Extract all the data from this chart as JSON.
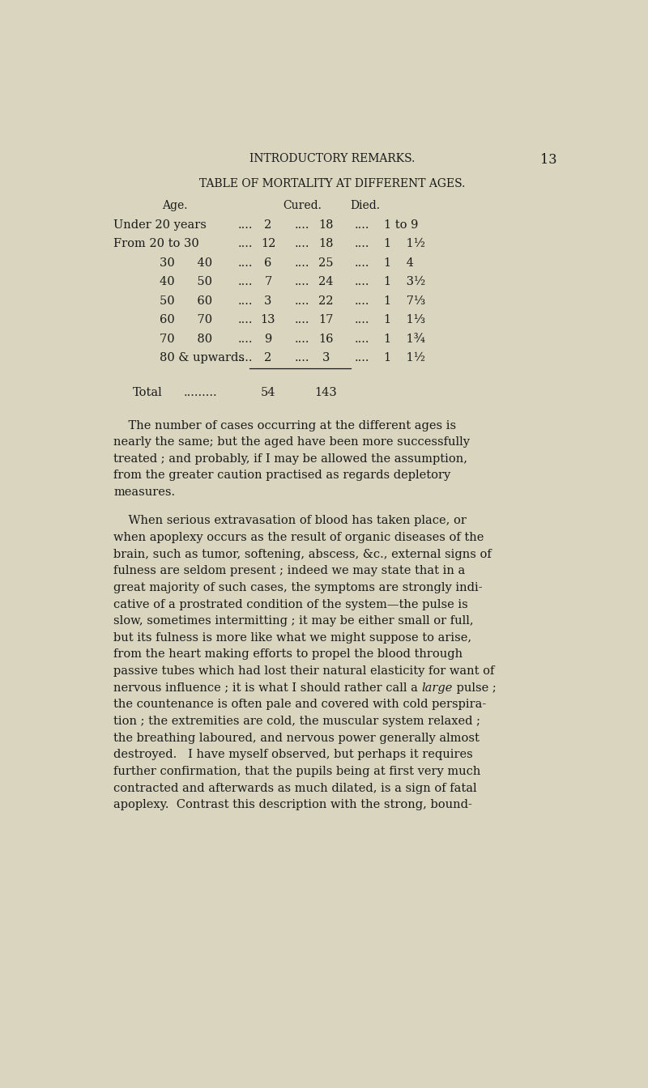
{
  "bg_color": "#d9d5be",
  "text_color": "#1a1a1a",
  "page_width": 8.0,
  "page_height": 13.44,
  "header_text": "INTRODUCTORY REMARKS.",
  "page_number": "13",
  "table_title": "TABLE OF MORTALITY AT DIFFERENT AGES.",
  "col_header_age": "Age.",
  "col_header_cured": "Cured.",
  "col_header_died": "Died.",
  "row_data": [
    [
      "Under 20 years",
      "2",
      "18",
      "1 to 9"
    ],
    [
      "From 20 to 30",
      "12",
      "18",
      "1    1½"
    ],
    [
      "30      40",
      "6",
      "25",
      "1    4"
    ],
    [
      "40      50",
      "7",
      "24",
      "1    3½"
    ],
    [
      "50      60",
      "3",
      "22",
      "1    7⅓"
    ],
    [
      "60      70",
      "13",
      "17",
      "1    1⅓"
    ],
    [
      "70      80",
      "9",
      "16",
      "1    1¾"
    ],
    [
      "80 & upwards",
      "2",
      "3",
      "1    1½"
    ]
  ],
  "para1_lines": [
    "    The number of cases occurring at the different ages is",
    "nearly the same; but the aged have been more successfully",
    "treated ; and probably, if I may be allowed the assumption,",
    "from the greater caution practised as regards depletory",
    "measures."
  ],
  "para2_lines": [
    "    When serious extravasation of blood has taken place, or",
    "when apoplexy occurs as the result of organic diseases of the",
    "brain, such as tumor, softening, abscess, &c., external signs of",
    "fulness are seldom present ; indeed we may state that in a",
    "great majority of such cases, the symptoms are strongly indi-",
    "cative of a prostrated condition of the system—the pulse is",
    "slow, sometimes intermitting ; it may be either small or full,",
    "but its fulness is more like what we might suppose to arise,",
    "from the heart making efforts to propel the blood through",
    "passive tubes which had lost their natural elasticity for want of",
    "nervous influence ; it is what I should rather call a |large| pulse ;",
    "the countenance is often pale and covered with cold perspira-",
    "tion ; the extremities are cold, the muscular system relaxed ;",
    "the breathing laboured, and nervous power generally almost",
    "destroyed.   I have myself observed, but perhaps it requires",
    "further confirmation, that the pupils being at first very much",
    "contracted and afterwards as much dilated, is a sign of fatal",
    "apoplexy.  Contrast this description with the strong, bound-"
  ]
}
